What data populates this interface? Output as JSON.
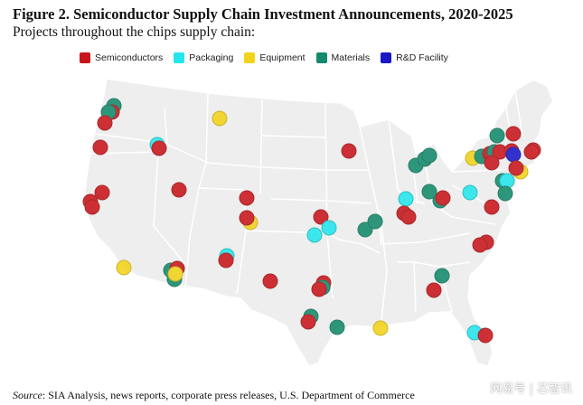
{
  "header": {
    "title": "Figure 2. Semiconductor Supply Chain Investment Announcements, 2020-2025",
    "subtitle": "Projects throughout the chips supply chain:"
  },
  "legend": [
    {
      "label": "Semiconductors",
      "color": "#c8151b"
    },
    {
      "label": "Packaging",
      "color": "#23e6ec"
    },
    {
      "label": "Equipment",
      "color": "#f2d21a"
    },
    {
      "label": "Materials",
      "color": "#138a6b"
    },
    {
      "label": "R&D Facility",
      "color": "#1a17c9"
    }
  ],
  "source": {
    "label": "Source",
    "text": ": SIA Analysis, news reports, corporate press releases, U.S. Department of Commerce"
  },
  "watermark": "网易号 | 芯智讯",
  "map": {
    "region": "Contiguous United States",
    "state_borders": true
  }
}
